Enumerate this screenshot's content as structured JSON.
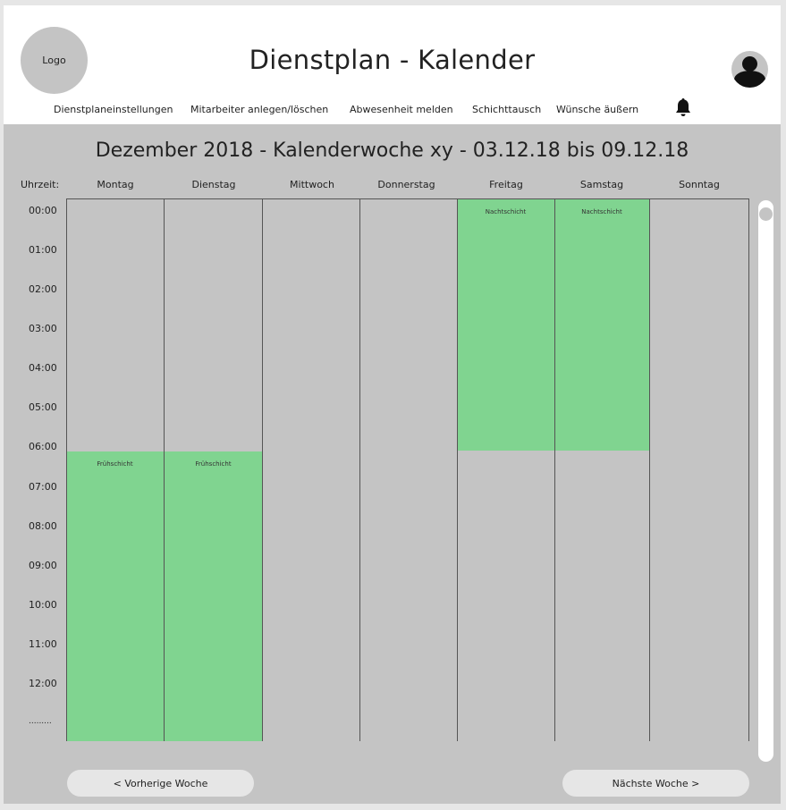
{
  "header": {
    "logo_label": "Logo",
    "title": "Dienstplan - Kalender",
    "nav": [
      {
        "label": "Dienstplaneinstellungen"
      },
      {
        "label": "Mitarbeiter anlegen/löschen"
      },
      {
        "label": "Abwesenheit melden"
      },
      {
        "label": "Schichttausch"
      },
      {
        "label": "Wünsche äußern"
      }
    ],
    "bell_icon": "bell-icon",
    "avatar_icon": "user-avatar-icon"
  },
  "calendar": {
    "week_title": "Dezember 2018 - Kalenderwoche xy - 03.12.18 bis 09.12.18",
    "time_header": "Uhrzeit:",
    "days": [
      "Montag",
      "Dienstag",
      "Mittwoch",
      "Donnerstag",
      "Freitag",
      "Samstag",
      "Sonntag"
    ],
    "times": [
      "00:00",
      "01:00",
      "02:00",
      "03:00",
      "04:00",
      "05:00",
      "06:00",
      "07:00",
      "08:00",
      "09:00",
      "10:00",
      "11:00",
      "12:00",
      "........."
    ],
    "shifts": [
      {
        "day": "Freitag",
        "label": "Nachtschicht",
        "start": "00:00",
        "end": "06:00"
      },
      {
        "day": "Samstag",
        "label": "Nachtschicht",
        "start": "00:00",
        "end": "06:00"
      },
      {
        "day": "Montag",
        "label": "Frühschicht",
        "start": "06:00",
        "end": "..."
      },
      {
        "day": "Dienstag",
        "label": "Frühschicht",
        "start": "06:00",
        "end": "..."
      }
    ],
    "shift_color": "#80d490"
  },
  "footer": {
    "prev_label": "< Vorherige Woche",
    "next_label": "Nächste Woche >"
  }
}
